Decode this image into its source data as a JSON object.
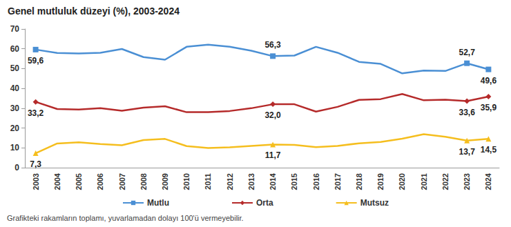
{
  "chart_data": {
    "type": "line",
    "title": "Genel mutluluk düzeyi (%), 2003-2024",
    "annotation": "Grafikteki rakamların toplamı, yuvarlamadan dolayı 100'ü vermeyebilir.",
    "categories": [
      "2003",
      "2004",
      "2005",
      "2006",
      "2007",
      "2008",
      "2009",
      "2010",
      "2011",
      "2012",
      "2013",
      "2014",
      "2015",
      "2016",
      "2017",
      "2018",
      "2019",
      "2020",
      "2021",
      "2022",
      "2023",
      "2024"
    ],
    "series": [
      {
        "name": "Mutlu",
        "color": "#4a8fd4",
        "marker": "square",
        "values": [
          59.6,
          57.9,
          57.6,
          58.0,
          59.9,
          55.8,
          54.5,
          61.0,
          62.1,
          61.0,
          59.0,
          56.3,
          56.6,
          61.0,
          58.0,
          53.4,
          52.4,
          47.6,
          49.0,
          48.8,
          52.7,
          49.6
        ],
        "value_labels": [
          "59,6",
          null,
          null,
          null,
          null,
          null,
          null,
          null,
          null,
          null,
          null,
          "56,3",
          null,
          null,
          null,
          null,
          null,
          null,
          null,
          null,
          "52,7",
          "49,6"
        ]
      },
      {
        "name": "Orta",
        "color": "#b52a2a",
        "marker": "diamond",
        "values": [
          33.2,
          29.6,
          29.3,
          30.0,
          28.7,
          30.3,
          31.0,
          28.0,
          28.0,
          28.6,
          30.0,
          32.0,
          32.0,
          28.3,
          30.7,
          34.2,
          34.6,
          37.2,
          34.0,
          34.3,
          33.6,
          35.9
        ],
        "value_labels": [
          "33,2",
          null,
          null,
          null,
          null,
          null,
          null,
          null,
          null,
          null,
          null,
          "32,0",
          null,
          null,
          null,
          null,
          null,
          null,
          null,
          null,
          "33,6",
          "35,9"
        ]
      },
      {
        "name": "Mutsuz",
        "color": "#f5be1e",
        "marker": "triangle",
        "values": [
          7.3,
          12.2,
          12.8,
          11.9,
          11.3,
          13.9,
          14.5,
          10.9,
          9.9,
          10.3,
          11.0,
          11.7,
          11.5,
          10.4,
          11.0,
          12.3,
          13.0,
          14.6,
          16.9,
          15.6,
          13.7,
          14.5
        ],
        "value_labels": [
          "7,3",
          null,
          null,
          null,
          null,
          null,
          null,
          null,
          null,
          null,
          null,
          "11,7",
          null,
          null,
          null,
          null,
          null,
          null,
          null,
          null,
          "13,7",
          "14,5"
        ]
      }
    ],
    "ylim": [
      0,
      70
    ],
    "yticks": [
      0,
      10,
      20,
      30,
      40,
      50,
      60,
      70
    ],
    "grid": false,
    "legend": "bottom",
    "data_labels": true
  }
}
